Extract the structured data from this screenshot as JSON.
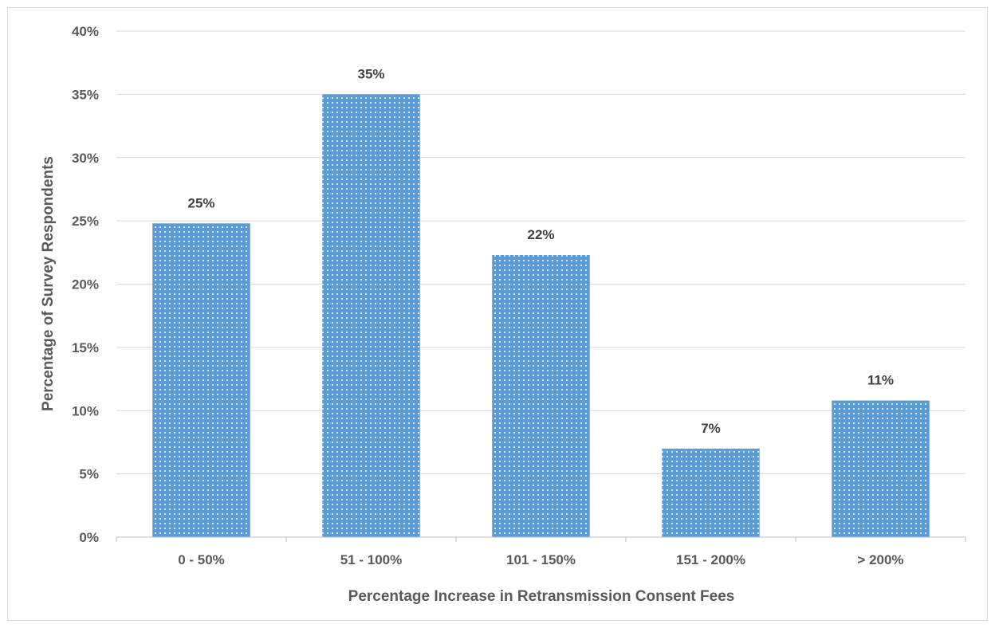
{
  "chart_data": {
    "type": "bar",
    "title": "",
    "xlabel": "Percentage Increase in Retransmission Consent Fees",
    "ylabel": "Percentage of Survey Respondents",
    "categories": [
      "0 - 50%",
      "51 - 100%",
      "101 - 150%",
      "151 - 200%",
      "> 200%"
    ],
    "values": [
      24.8,
      35.0,
      22.3,
      7.0,
      10.8
    ],
    "data_labels": [
      "25%",
      "35%",
      "22%",
      "7%",
      "11%"
    ],
    "ylim": [
      0,
      40
    ],
    "yticks": [
      0,
      5,
      10,
      15,
      20,
      25,
      30,
      35,
      40
    ],
    "ytick_labels": [
      "0%",
      "5%",
      "10%",
      "15%",
      "20%",
      "25%",
      "30%",
      "35%",
      "40%"
    ],
    "grid": true,
    "legend": "none",
    "bar_color": "#5b9bd5",
    "bar_pattern": "white-dots"
  }
}
